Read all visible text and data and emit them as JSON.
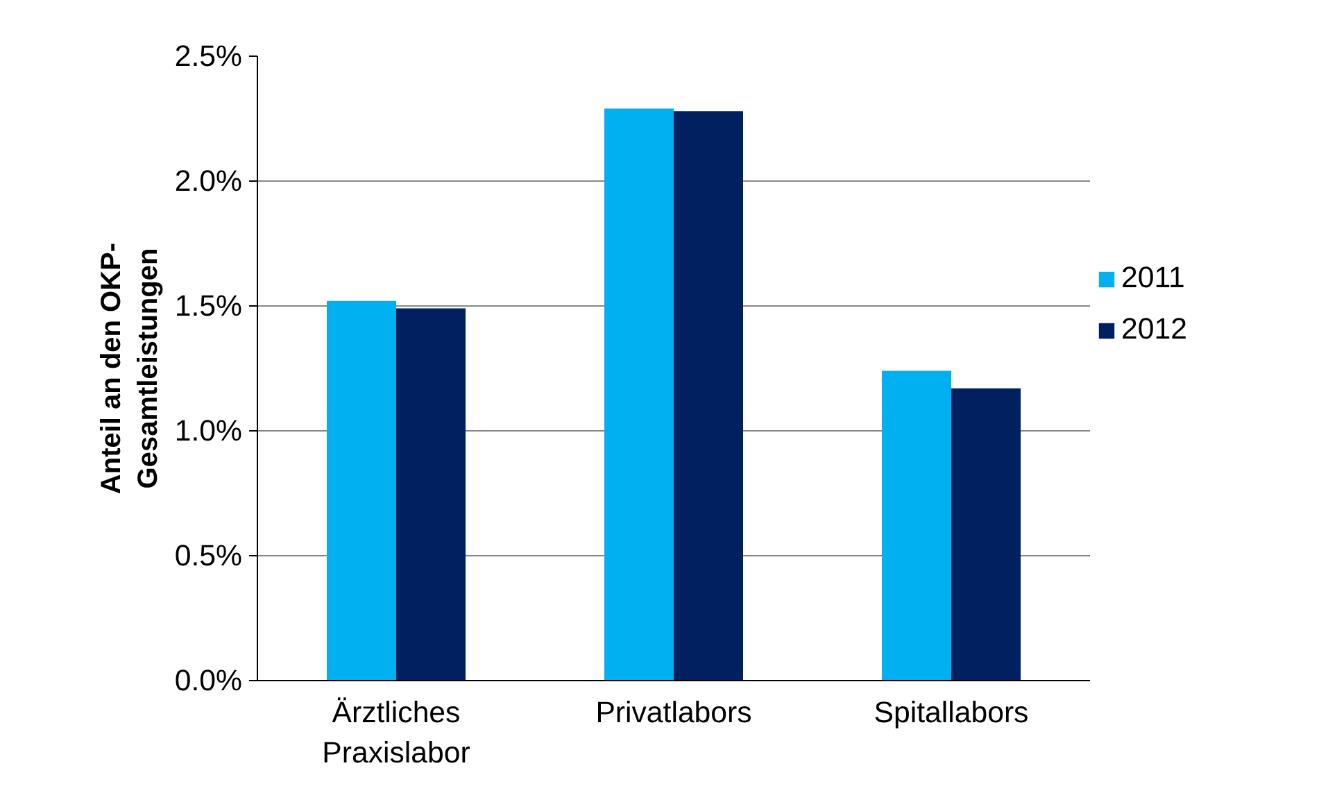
{
  "chart_data": {
    "type": "bar",
    "ylabel": "Anteil an den OKP-\nGesamtleistungen",
    "categories": [
      "Ärztliches\nPraxislabor",
      "Privatlabors",
      "Spitallabors"
    ],
    "series": [
      {
        "name": "2011",
        "color": "#00b0f0",
        "values": [
          1.52,
          2.29,
          1.24
        ]
      },
      {
        "name": "2012",
        "color": "#002060",
        "values": [
          1.49,
          2.28,
          1.17
        ]
      }
    ],
    "ylim": [
      0,
      2.5
    ],
    "yticks": [
      {
        "value": 0,
        "label": "0.0%"
      },
      {
        "value": 0.5,
        "label": "0.5%"
      },
      {
        "value": 1.0,
        "label": "1.0%"
      },
      {
        "value": 1.5,
        "label": "1.5%"
      },
      {
        "value": 2.0,
        "label": "2.0%"
      },
      {
        "value": 2.5,
        "label": "2.5%"
      }
    ],
    "grid": "y",
    "legend": "right"
  }
}
